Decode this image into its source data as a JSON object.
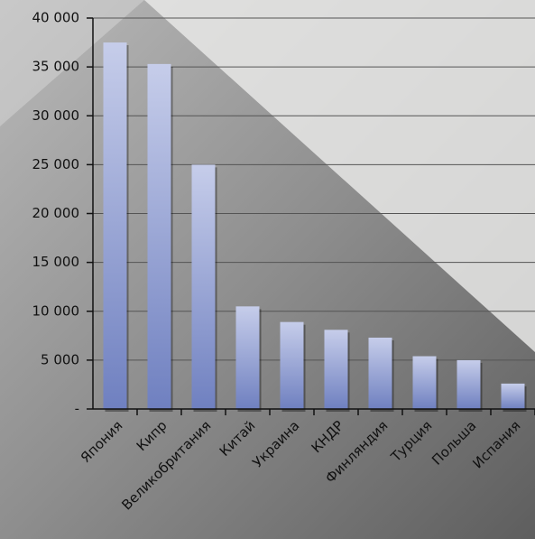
{
  "chart_data": {
    "type": "bar",
    "categories": [
      "Япония",
      "Кипр",
      "Великобритания",
      "Китай",
      "Украина",
      "КНДР",
      "Финляндия",
      "Турция",
      "Польша",
      "Испания"
    ],
    "values": [
      37500,
      35300,
      25000,
      10500,
      8900,
      8100,
      7300,
      5400,
      5000,
      2600
    ],
    "color": "#7f8fc8",
    "ylim": [
      0,
      40000
    ],
    "yticks": [
      {
        "value": 0,
        "label": "-"
      },
      {
        "value": 5000,
        "label": "5 000"
      },
      {
        "value": 10000,
        "label": "10 000"
      },
      {
        "value": 15000,
        "label": "15 000"
      },
      {
        "value": 20000,
        "label": "20 000"
      },
      {
        "value": 25000,
        "label": "25 000"
      },
      {
        "value": 30000,
        "label": "30 000"
      },
      {
        "value": 35000,
        "label": "35 000"
      },
      {
        "value": 40000,
        "label": "40 000"
      }
    ],
    "grid": true
  }
}
